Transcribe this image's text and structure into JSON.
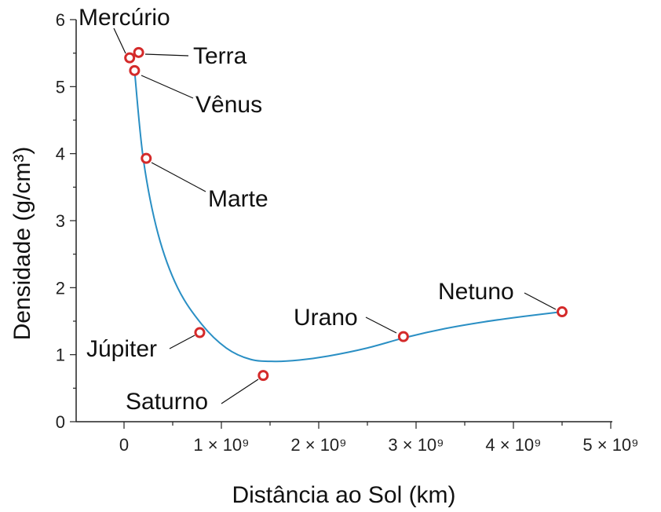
{
  "chart_data": {
    "type": "scatter",
    "xlabel": "Distância ao Sol (km)",
    "ylabel": "Densidade (g/cm³)",
    "xlim": [
      -0.5,
      5.0
    ],
    "ylim": [
      0,
      6
    ],
    "x_scale_note": "× 10^9",
    "xticks": [
      {
        "value": 0,
        "label": "0"
      },
      {
        "value": 1,
        "label": "1 × 10⁹"
      },
      {
        "value": 2,
        "label": "2 × 10⁹"
      },
      {
        "value": 3,
        "label": "3 × 10⁹"
      },
      {
        "value": 4,
        "label": "4 × 10⁹"
      },
      {
        "value": 5,
        "label": "5 × 10⁹"
      }
    ],
    "yticks": [
      0,
      1,
      2,
      3,
      4,
      5,
      6
    ],
    "points": [
      {
        "name": "Mercúrio",
        "x": 0.058,
        "y": 5.43
      },
      {
        "name": "Terra",
        "x": 0.15,
        "y": 5.51
      },
      {
        "name": "Vênus",
        "x": 0.108,
        "y": 5.24
      },
      {
        "name": "Marte",
        "x": 0.228,
        "y": 3.93
      },
      {
        "name": "Júpiter",
        "x": 0.778,
        "y": 1.33
      },
      {
        "name": "Saturno",
        "x": 1.43,
        "y": 0.69
      },
      {
        "name": "Urano",
        "x": 2.87,
        "y": 1.27
      },
      {
        "name": "Netuno",
        "x": 4.5,
        "y": 1.64
      }
    ],
    "trend_curve": {
      "x": [
        0.108,
        0.2,
        0.35,
        0.55,
        0.8,
        1.05,
        1.3,
        1.55,
        1.8,
        2.1,
        2.5,
        2.9,
        3.3,
        3.7,
        4.1,
        4.5
      ],
      "y": [
        5.24,
        3.9,
        2.8,
        2.0,
        1.45,
        1.1,
        0.93,
        0.9,
        0.92,
        0.98,
        1.1,
        1.26,
        1.39,
        1.49,
        1.57,
        1.64
      ]
    },
    "colors": {
      "marker": "#d42a2a",
      "curve": "#2a8fc4",
      "axis": "#222222"
    },
    "grid": false
  }
}
